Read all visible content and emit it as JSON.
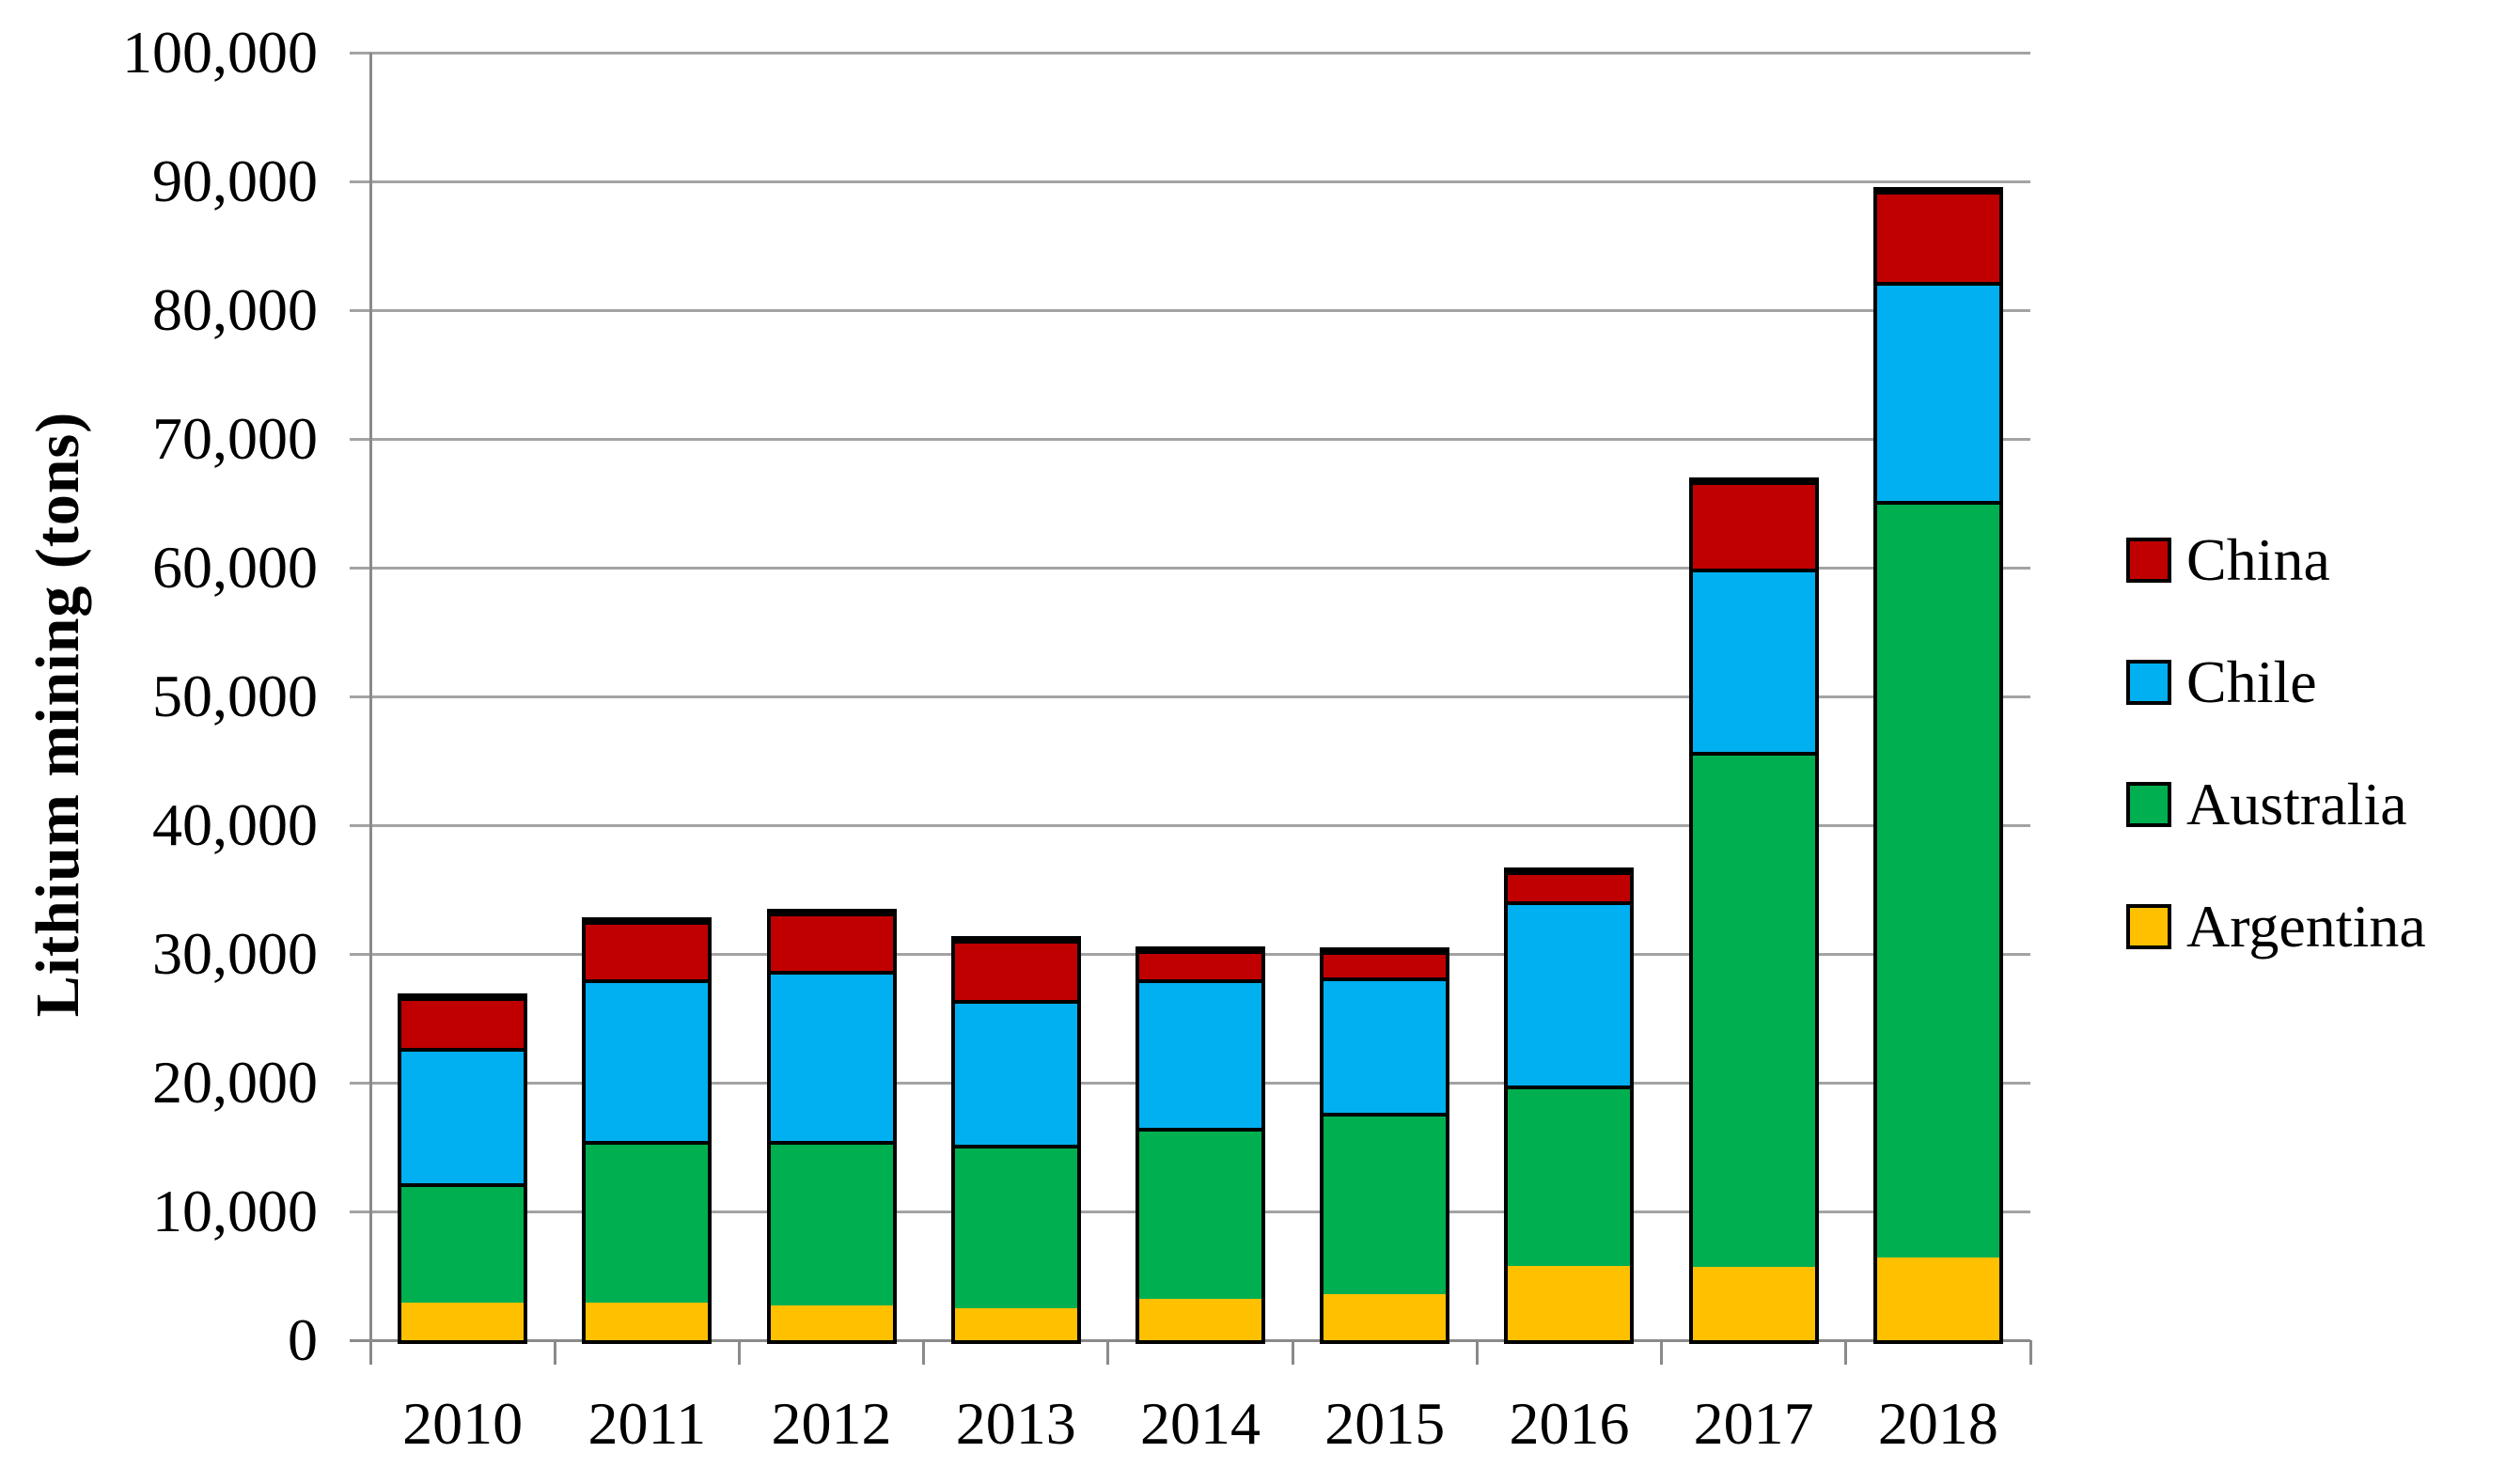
{
  "chart_data": {
    "type": "bar",
    "stacked": true,
    "title": "",
    "xlabel": "",
    "ylabel": "Lithium mining (tons)",
    "categories": [
      "2010",
      "2011",
      "2012",
      "2013",
      "2014",
      "2015",
      "2016",
      "2017",
      "2018"
    ],
    "series": [
      {
        "name": "Argentina",
        "color": "#FFC000",
        "values": [
          2950,
          2950,
          2700,
          2500,
          3200,
          3600,
          5800,
          5700,
          6400
        ]
      },
      {
        "name": "Australia",
        "color": "#00B050",
        "values": [
          9260,
          12500,
          12800,
          12700,
          13300,
          14100,
          14000,
          40000,
          58800
        ]
      },
      {
        "name": "Chile",
        "color": "#00B0F0",
        "values": [
          10510,
          12600,
          13200,
          11200,
          11500,
          10500,
          14300,
          14200,
          17000
        ]
      },
      {
        "name": "China",
        "color": "#C00000",
        "values": [
          3950,
          4500,
          4500,
          4700,
          2300,
          2000,
          2300,
          6800,
          7100
        ]
      }
    ],
    "ylim": [
      0,
      100000
    ],
    "ytick_interval": 10000,
    "ytick_labels": [
      "0",
      "10,000",
      "20,000",
      "30,000",
      "40,000",
      "50,000",
      "60,000",
      "70,000",
      "80,000",
      "90,000",
      "100,000"
    ],
    "grid": true,
    "legend_position": "right",
    "legend_order": [
      "China",
      "Chile",
      "Australia",
      "Argentina"
    ],
    "bar_border_color": "#000000",
    "grid_color": "#A3A3A3",
    "axis_color": "#8A8A8A"
  }
}
